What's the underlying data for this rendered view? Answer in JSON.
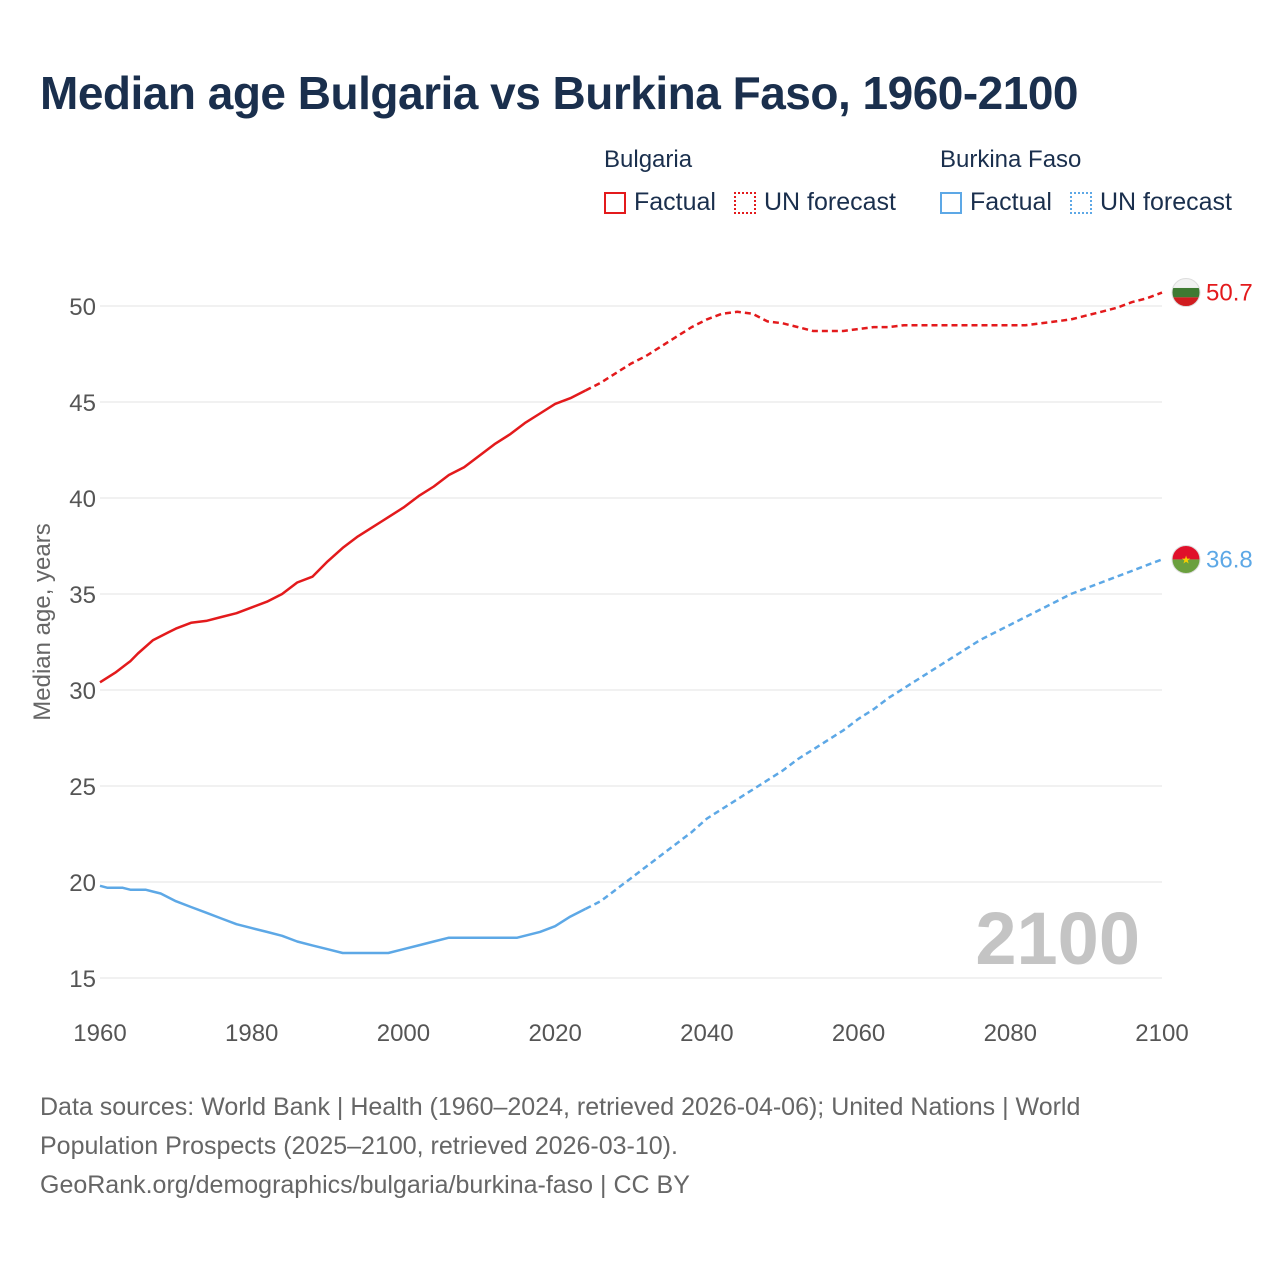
{
  "title": "Median age Bulgaria vs Burkina Faso, 1960-2100",
  "legend": {
    "groups": [
      {
        "name": "Bulgaria",
        "color": "#e31a1c",
        "factual_label": "Factual",
        "forecast_label": "UN forecast"
      },
      {
        "name": "Burkina Faso",
        "color": "#5da8e6",
        "factual_label": "Factual",
        "forecast_label": "UN forecast"
      }
    ]
  },
  "year_watermark": "2100",
  "source": {
    "line1": "Data sources: World Bank | Health (1960–2024, retrieved 2026-04-06); United Nations | World",
    "line2": "Population Prospects (2025–2100, retrieved 2026-03-10).",
    "line3": "GeoRank.org/demographics/bulgaria/burkina-faso | CC BY"
  },
  "chart_data": {
    "type": "line",
    "title": "Median age Bulgaria vs Burkina Faso, 1960-2100",
    "xlabel": "",
    "ylabel": "Median age, years",
    "xlim": [
      1960,
      2100
    ],
    "ylim": [
      15,
      52
    ],
    "x_ticks": [
      1960,
      1980,
      2000,
      2020,
      2040,
      2060,
      2080,
      2100
    ],
    "y_ticks": [
      15,
      20,
      25,
      30,
      35,
      40,
      45,
      50
    ],
    "grid": true,
    "factual_end_year": 2024,
    "series": [
      {
        "name": "Bulgaria",
        "color": "#e31a1c",
        "end_label": "50.7",
        "flag": "bulgaria",
        "points": [
          [
            1960,
            30.4
          ],
          [
            1962,
            30.9
          ],
          [
            1964,
            31.5
          ],
          [
            1965,
            31.9
          ],
          [
            1967,
            32.6
          ],
          [
            1969,
            33.0
          ],
          [
            1970,
            33.2
          ],
          [
            1972,
            33.5
          ],
          [
            1974,
            33.6
          ],
          [
            1976,
            33.8
          ],
          [
            1978,
            34.0
          ],
          [
            1980,
            34.3
          ],
          [
            1982,
            34.6
          ],
          [
            1984,
            35.0
          ],
          [
            1986,
            35.6
          ],
          [
            1988,
            35.9
          ],
          [
            1990,
            36.7
          ],
          [
            1992,
            37.4
          ],
          [
            1994,
            38.0
          ],
          [
            1996,
            38.5
          ],
          [
            1998,
            39.0
          ],
          [
            2000,
            39.5
          ],
          [
            2002,
            40.1
          ],
          [
            2004,
            40.6
          ],
          [
            2006,
            41.2
          ],
          [
            2008,
            41.6
          ],
          [
            2010,
            42.2
          ],
          [
            2012,
            42.8
          ],
          [
            2014,
            43.3
          ],
          [
            2016,
            43.9
          ],
          [
            2018,
            44.4
          ],
          [
            2020,
            44.9
          ],
          [
            2022,
            45.2
          ],
          [
            2024,
            45.6
          ],
          [
            2026,
            46.0
          ],
          [
            2028,
            46.5
          ],
          [
            2030,
            47.0
          ],
          [
            2032,
            47.4
          ],
          [
            2034,
            47.9
          ],
          [
            2036,
            48.4
          ],
          [
            2038,
            48.9
          ],
          [
            2040,
            49.3
          ],
          [
            2042,
            49.6
          ],
          [
            2044,
            49.7
          ],
          [
            2046,
            49.6
          ],
          [
            2048,
            49.2
          ],
          [
            2050,
            49.1
          ],
          [
            2052,
            48.9
          ],
          [
            2054,
            48.7
          ],
          [
            2056,
            48.7
          ],
          [
            2058,
            48.7
          ],
          [
            2060,
            48.8
          ],
          [
            2062,
            48.9
          ],
          [
            2064,
            48.9
          ],
          [
            2066,
            49.0
          ],
          [
            2068,
            49.0
          ],
          [
            2070,
            49.0
          ],
          [
            2072,
            49.0
          ],
          [
            2074,
            49.0
          ],
          [
            2076,
            49.0
          ],
          [
            2078,
            49.0
          ],
          [
            2080,
            49.0
          ],
          [
            2082,
            49.0
          ],
          [
            2084,
            49.1
          ],
          [
            2086,
            49.2
          ],
          [
            2088,
            49.3
          ],
          [
            2090,
            49.5
          ],
          [
            2092,
            49.7
          ],
          [
            2094,
            49.9
          ],
          [
            2096,
            50.2
          ],
          [
            2098,
            50.4
          ],
          [
            2100,
            50.7
          ]
        ]
      },
      {
        "name": "Burkina Faso",
        "color": "#5da8e6",
        "end_label": "36.8",
        "flag": "burkina-faso",
        "points": [
          [
            1960,
            19.8
          ],
          [
            1961,
            19.7
          ],
          [
            1963,
            19.7
          ],
          [
            1964,
            19.6
          ],
          [
            1966,
            19.6
          ],
          [
            1967,
            19.5
          ],
          [
            1968,
            19.4
          ],
          [
            1970,
            19.0
          ],
          [
            1972,
            18.7
          ],
          [
            1974,
            18.4
          ],
          [
            1976,
            18.1
          ],
          [
            1978,
            17.8
          ],
          [
            1980,
            17.6
          ],
          [
            1982,
            17.4
          ],
          [
            1984,
            17.2
          ],
          [
            1986,
            16.9
          ],
          [
            1988,
            16.7
          ],
          [
            1990,
            16.5
          ],
          [
            1992,
            16.3
          ],
          [
            1994,
            16.3
          ],
          [
            1996,
            16.3
          ],
          [
            1998,
            16.3
          ],
          [
            2000,
            16.5
          ],
          [
            2002,
            16.7
          ],
          [
            2004,
            16.9
          ],
          [
            2006,
            17.1
          ],
          [
            2008,
            17.1
          ],
          [
            2010,
            17.1
          ],
          [
            2012,
            17.1
          ],
          [
            2015,
            17.1
          ],
          [
            2018,
            17.4
          ],
          [
            2020,
            17.7
          ],
          [
            2022,
            18.2
          ],
          [
            2024,
            18.6
          ],
          [
            2026,
            19.0
          ],
          [
            2028,
            19.6
          ],
          [
            2030,
            20.2
          ],
          [
            2032,
            20.8
          ],
          [
            2034,
            21.4
          ],
          [
            2036,
            22.0
          ],
          [
            2038,
            22.6
          ],
          [
            2040,
            23.3
          ],
          [
            2042,
            23.8
          ],
          [
            2044,
            24.3
          ],
          [
            2046,
            24.8
          ],
          [
            2048,
            25.3
          ],
          [
            2050,
            25.8
          ],
          [
            2052,
            26.4
          ],
          [
            2054,
            26.9
          ],
          [
            2056,
            27.4
          ],
          [
            2058,
            27.9
          ],
          [
            2060,
            28.5
          ],
          [
            2062,
            29.0
          ],
          [
            2064,
            29.6
          ],
          [
            2066,
            30.1
          ],
          [
            2068,
            30.6
          ],
          [
            2070,
            31.1
          ],
          [
            2072,
            31.6
          ],
          [
            2074,
            32.1
          ],
          [
            2076,
            32.6
          ],
          [
            2078,
            33.0
          ],
          [
            2080,
            33.4
          ],
          [
            2082,
            33.8
          ],
          [
            2084,
            34.2
          ],
          [
            2086,
            34.6
          ],
          [
            2088,
            35.0
          ],
          [
            2090,
            35.3
          ],
          [
            2092,
            35.6
          ],
          [
            2094,
            35.9
          ],
          [
            2096,
            36.2
          ],
          [
            2098,
            36.5
          ],
          [
            2100,
            36.8
          ]
        ]
      }
    ]
  }
}
